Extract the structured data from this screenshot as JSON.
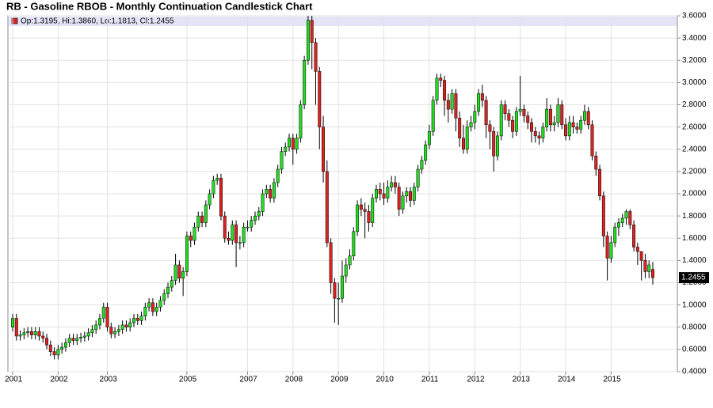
{
  "chart_data": {
    "type": "candlestick",
    "title": "RB - Gasoline RBOB - Monthly Continuation Candlestick Chart",
    "legend_text": "Op:1.3195, Hi:1.3860, Lo:1.1813, Cl:1.2455",
    "up_color": "#22dd22",
    "down_color": "#dd2222",
    "ylim": [
      0.4,
      3.6
    ],
    "yticks": [
      {
        "value": 0.4,
        "label": "0.4000"
      },
      {
        "value": 0.6,
        "label": "0.6000"
      },
      {
        "value": 0.8,
        "label": "0.8000"
      },
      {
        "value": 1.0,
        "label": "1.0000"
      },
      {
        "value": 1.2,
        "label": "1.2000"
      },
      {
        "value": 1.4,
        "label": "1.4000"
      },
      {
        "value": 1.6,
        "label": "1.6000"
      },
      {
        "value": 1.8,
        "label": "1.8000"
      },
      {
        "value": 2.0,
        "label": "2.0000"
      },
      {
        "value": 2.2,
        "label": "2.2000"
      },
      {
        "value": 2.4,
        "label": "2.4000"
      },
      {
        "value": 2.6,
        "label": "2.6000"
      },
      {
        "value": 2.8,
        "label": "2.8000"
      },
      {
        "value": 3.0,
        "label": "3.0000"
      },
      {
        "value": 3.2,
        "label": "3.2000"
      },
      {
        "value": 3.4,
        "label": "3.4000"
      },
      {
        "value": 3.6,
        "label": "3.6000"
      }
    ],
    "grid": true,
    "categories": [
      "2001",
      null,
      null,
      null,
      null,
      null,
      null,
      null,
      null,
      null,
      null,
      null,
      "2002",
      null,
      null,
      null,
      null,
      null,
      null,
      null,
      null,
      null,
      null,
      null,
      null,
      "2003",
      null,
      null,
      null,
      null,
      null,
      null,
      null,
      null,
      null,
      null,
      null,
      null,
      null,
      null,
      null,
      null,
      null,
      null,
      null,
      null,
      "2005",
      null,
      null,
      null,
      null,
      null,
      null,
      null,
      null,
      null,
      null,
      null,
      null,
      null,
      null,
      null,
      "2007",
      null,
      null,
      null,
      null,
      null,
      null,
      null,
      null,
      null,
      null,
      null,
      "2008",
      null,
      null,
      null,
      null,
      null,
      null,
      null,
      null,
      null,
      null,
      null,
      "2009",
      null,
      null,
      null,
      null,
      null,
      null,
      null,
      null,
      null,
      null,
      null,
      "2010",
      null,
      null,
      null,
      null,
      null,
      null,
      null,
      null,
      null,
      null,
      null,
      "2011",
      null,
      null,
      null,
      null,
      null,
      null,
      null,
      null,
      null,
      null,
      null,
      "2012",
      null,
      null,
      null,
      null,
      null,
      null,
      null,
      null,
      null,
      null,
      null,
      "2013",
      null,
      null,
      null,
      null,
      null,
      null,
      null,
      null,
      null,
      null,
      null,
      "2014",
      null,
      null,
      null,
      null,
      null,
      null,
      null,
      null,
      null,
      null,
      null,
      "2015",
      null,
      null,
      null,
      null,
      null,
      null,
      null,
      null,
      null,
      null,
      null
    ],
    "open": [
      0.8,
      0.88,
      0.72,
      0.73,
      0.75,
      0.76,
      0.73,
      0.76,
      0.72,
      0.7,
      0.64,
      0.58,
      0.55,
      0.6,
      0.62,
      0.66,
      0.7,
      0.68,
      0.7,
      0.71,
      0.72,
      0.75,
      0.78,
      0.82,
      0.88,
      0.98,
      0.8,
      0.74,
      0.76,
      0.78,
      0.82,
      0.8,
      0.84,
      0.88,
      0.86,
      0.9,
      0.98,
      1.02,
      0.94,
      0.98,
      1.04,
      1.1,
      1.16,
      1.22,
      1.36,
      1.24,
      1.3,
      1.62,
      1.58,
      1.7,
      1.8,
      1.74,
      1.9,
      2.0,
      2.12,
      2.14,
      1.8,
      1.6,
      1.58,
      1.72,
      1.56,
      1.56,
      1.7,
      1.7,
      1.76,
      1.8,
      1.84,
      2.0,
      2.04,
      1.96,
      2.1,
      2.22,
      2.38,
      2.42,
      2.5,
      2.4,
      2.5,
      2.8,
      3.2,
      3.56,
      3.36,
      3.1,
      2.6,
      2.2,
      1.56,
      1.2,
      1.06,
      1.06,
      1.26,
      1.36,
      1.44,
      1.66,
      1.9,
      1.86,
      1.84,
      1.74,
      1.96,
      2.04,
      2.0,
      1.96,
      2.06,
      2.1,
      2.06,
      1.86,
      1.98,
      2.02,
      1.94,
      2.06,
      2.22,
      2.3,
      2.44,
      2.56,
      2.84,
      3.04,
      3.02,
      2.84,
      2.76,
      2.9,
      2.68,
      2.5,
      2.4,
      2.6,
      2.64,
      2.74,
      2.9,
      2.84,
      2.62,
      2.56,
      2.34,
      2.52,
      2.8,
      2.72,
      2.66,
      2.56,
      2.74,
      2.76,
      2.7,
      2.64,
      2.56,
      2.52,
      2.5,
      2.6,
      2.76,
      2.62,
      2.64,
      2.8,
      2.62,
      2.52,
      2.64,
      2.6,
      2.58,
      2.66,
      2.74,
      2.62,
      2.34,
      2.22,
      1.98,
      1.62,
      1.42,
      1.56,
      1.7,
      1.74,
      1.78,
      1.84,
      1.72,
      1.52,
      1.48,
      1.4,
      1.3,
      1.3195
    ],
    "high": [
      0.92,
      0.92,
      0.77,
      0.79,
      0.8,
      0.8,
      0.8,
      0.8,
      0.76,
      0.74,
      0.68,
      0.62,
      0.64,
      0.66,
      0.7,
      0.74,
      0.74,
      0.74,
      0.75,
      0.76,
      0.79,
      0.82,
      0.86,
      0.92,
      1.02,
      1.02,
      0.84,
      0.8,
      0.82,
      0.86,
      0.86,
      0.88,
      0.92,
      0.92,
      0.94,
      1.02,
      1.06,
      1.06,
      1.02,
      1.08,
      1.14,
      1.2,
      1.26,
      1.46,
      1.4,
      1.34,
      1.66,
      1.66,
      1.74,
      1.84,
      1.84,
      1.94,
      2.04,
      2.16,
      2.18,
      2.18,
      1.84,
      1.66,
      1.76,
      1.76,
      1.62,
      1.74,
      1.76,
      1.8,
      1.84,
      1.88,
      2.04,
      2.08,
      2.08,
      2.14,
      2.26,
      2.42,
      2.46,
      2.54,
      2.54,
      2.54,
      2.84,
      3.24,
      3.6,
      3.6,
      3.4,
      3.14,
      2.7,
      2.3,
      1.6,
      1.24,
      1.2,
      1.4,
      1.42,
      1.5,
      1.7,
      1.94,
      1.96,
      1.92,
      1.9,
      2.0,
      2.08,
      2.1,
      2.1,
      2.12,
      2.16,
      2.16,
      2.1,
      2.02,
      2.06,
      2.06,
      2.1,
      2.26,
      2.34,
      2.48,
      2.62,
      2.88,
      3.08,
      3.08,
      3.06,
      2.9,
      2.94,
      2.94,
      2.74,
      2.62,
      2.66,
      2.7,
      2.8,
      2.94,
      2.98,
      2.88,
      2.66,
      2.6,
      2.56,
      2.84,
      2.84,
      2.76,
      2.7,
      2.78,
      3.06,
      2.8,
      2.74,
      2.68,
      2.6,
      2.56,
      2.64,
      2.86,
      2.8,
      2.7,
      2.86,
      2.84,
      2.68,
      2.7,
      2.7,
      2.64,
      2.7,
      2.8,
      2.78,
      2.66,
      2.38,
      2.26,
      2.02,
      1.66,
      1.62,
      1.74,
      1.78,
      1.82,
      1.86,
      1.86,
      1.76,
      1.56,
      1.48,
      1.46,
      1.4,
      1.386
    ],
    "low": [
      0.76,
      0.68,
      0.68,
      0.69,
      0.71,
      0.69,
      0.69,
      0.68,
      0.66,
      0.6,
      0.54,
      0.51,
      0.51,
      0.56,
      0.58,
      0.62,
      0.64,
      0.64,
      0.66,
      0.67,
      0.68,
      0.71,
      0.74,
      0.78,
      0.84,
      0.76,
      0.7,
      0.7,
      0.72,
      0.74,
      0.76,
      0.76,
      0.8,
      0.82,
      0.82,
      0.86,
      0.94,
      0.9,
      0.9,
      0.94,
      1.0,
      1.06,
      1.12,
      1.18,
      1.2,
      1.08,
      1.26,
      1.52,
      1.54,
      1.66,
      1.7,
      1.7,
      1.86,
      1.96,
      2.08,
      1.76,
      1.56,
      1.54,
      1.54,
      1.34,
      1.5,
      1.52,
      1.66,
      1.66,
      1.72,
      1.76,
      1.8,
      1.96,
      1.92,
      1.92,
      2.06,
      2.18,
      2.34,
      2.38,
      2.26,
      2.36,
      2.46,
      2.76,
      3.16,
      3.12,
      2.8,
      2.4,
      2.1,
      1.52,
      1.1,
      0.84,
      0.82,
      1.02,
      1.2,
      1.32,
      1.4,
      1.62,
      1.8,
      1.6,
      1.66,
      1.7,
      1.92,
      1.94,
      1.9,
      1.92,
      2.02,
      2.0,
      1.8,
      1.82,
      1.92,
      1.88,
      1.9,
      2.02,
      2.18,
      2.26,
      2.4,
      2.52,
      2.8,
      2.96,
      2.7,
      2.64,
      2.72,
      2.56,
      2.42,
      2.36,
      2.36,
      2.56,
      2.58,
      2.7,
      2.78,
      2.5,
      2.4,
      2.2,
      2.3,
      2.48,
      2.66,
      2.6,
      2.5,
      2.52,
      2.7,
      2.64,
      2.58,
      2.46,
      2.46,
      2.44,
      2.46,
      2.56,
      2.56,
      2.56,
      2.6,
      2.58,
      2.48,
      2.48,
      2.54,
      2.54,
      2.54,
      2.62,
      2.58,
      2.3,
      2.16,
      1.94,
      1.52,
      1.22,
      1.38,
      1.52,
      1.62,
      1.7,
      1.72,
      1.68,
      1.48,
      1.36,
      1.22,
      1.24,
      1.24,
      1.1813
    ],
    "close": [
      0.88,
      0.72,
      0.73,
      0.75,
      0.76,
      0.73,
      0.76,
      0.72,
      0.7,
      0.64,
      0.58,
      0.55,
      0.6,
      0.62,
      0.66,
      0.7,
      0.68,
      0.7,
      0.71,
      0.72,
      0.75,
      0.78,
      0.82,
      0.88,
      0.98,
      0.8,
      0.74,
      0.76,
      0.78,
      0.82,
      0.8,
      0.84,
      0.88,
      0.86,
      0.9,
      0.98,
      1.02,
      0.94,
      0.98,
      1.04,
      1.1,
      1.16,
      1.22,
      1.36,
      1.24,
      1.3,
      1.62,
      1.58,
      1.7,
      1.8,
      1.74,
      1.9,
      2.0,
      2.12,
      2.14,
      1.8,
      1.6,
      1.58,
      1.72,
      1.56,
      1.56,
      1.7,
      1.7,
      1.76,
      1.8,
      1.84,
      2.0,
      2.04,
      1.96,
      2.1,
      2.22,
      2.38,
      2.42,
      2.5,
      2.4,
      2.5,
      2.8,
      3.2,
      3.56,
      3.36,
      3.1,
      2.6,
      2.2,
      1.56,
      1.2,
      1.06,
      1.06,
      1.26,
      1.36,
      1.44,
      1.66,
      1.9,
      1.86,
      1.84,
      1.74,
      1.96,
      2.04,
      2.0,
      1.96,
      2.06,
      2.1,
      2.06,
      1.86,
      1.98,
      2.02,
      1.94,
      2.06,
      2.22,
      2.3,
      2.44,
      2.56,
      2.84,
      3.04,
      3.02,
      2.84,
      2.76,
      2.9,
      2.68,
      2.5,
      2.4,
      2.6,
      2.64,
      2.74,
      2.9,
      2.84,
      2.62,
      2.56,
      2.34,
      2.52,
      2.8,
      2.72,
      2.66,
      2.56,
      2.74,
      2.76,
      2.7,
      2.64,
      2.56,
      2.52,
      2.5,
      2.6,
      2.76,
      2.62,
      2.64,
      2.8,
      2.62,
      2.52,
      2.64,
      2.6,
      2.58,
      2.66,
      2.74,
      2.62,
      2.34,
      2.22,
      1.98,
      1.62,
      1.42,
      1.56,
      1.7,
      1.74,
      1.78,
      1.84,
      1.72,
      1.52,
      1.48,
      1.4,
      1.3,
      1.36,
      1.2455
    ]
  }
}
